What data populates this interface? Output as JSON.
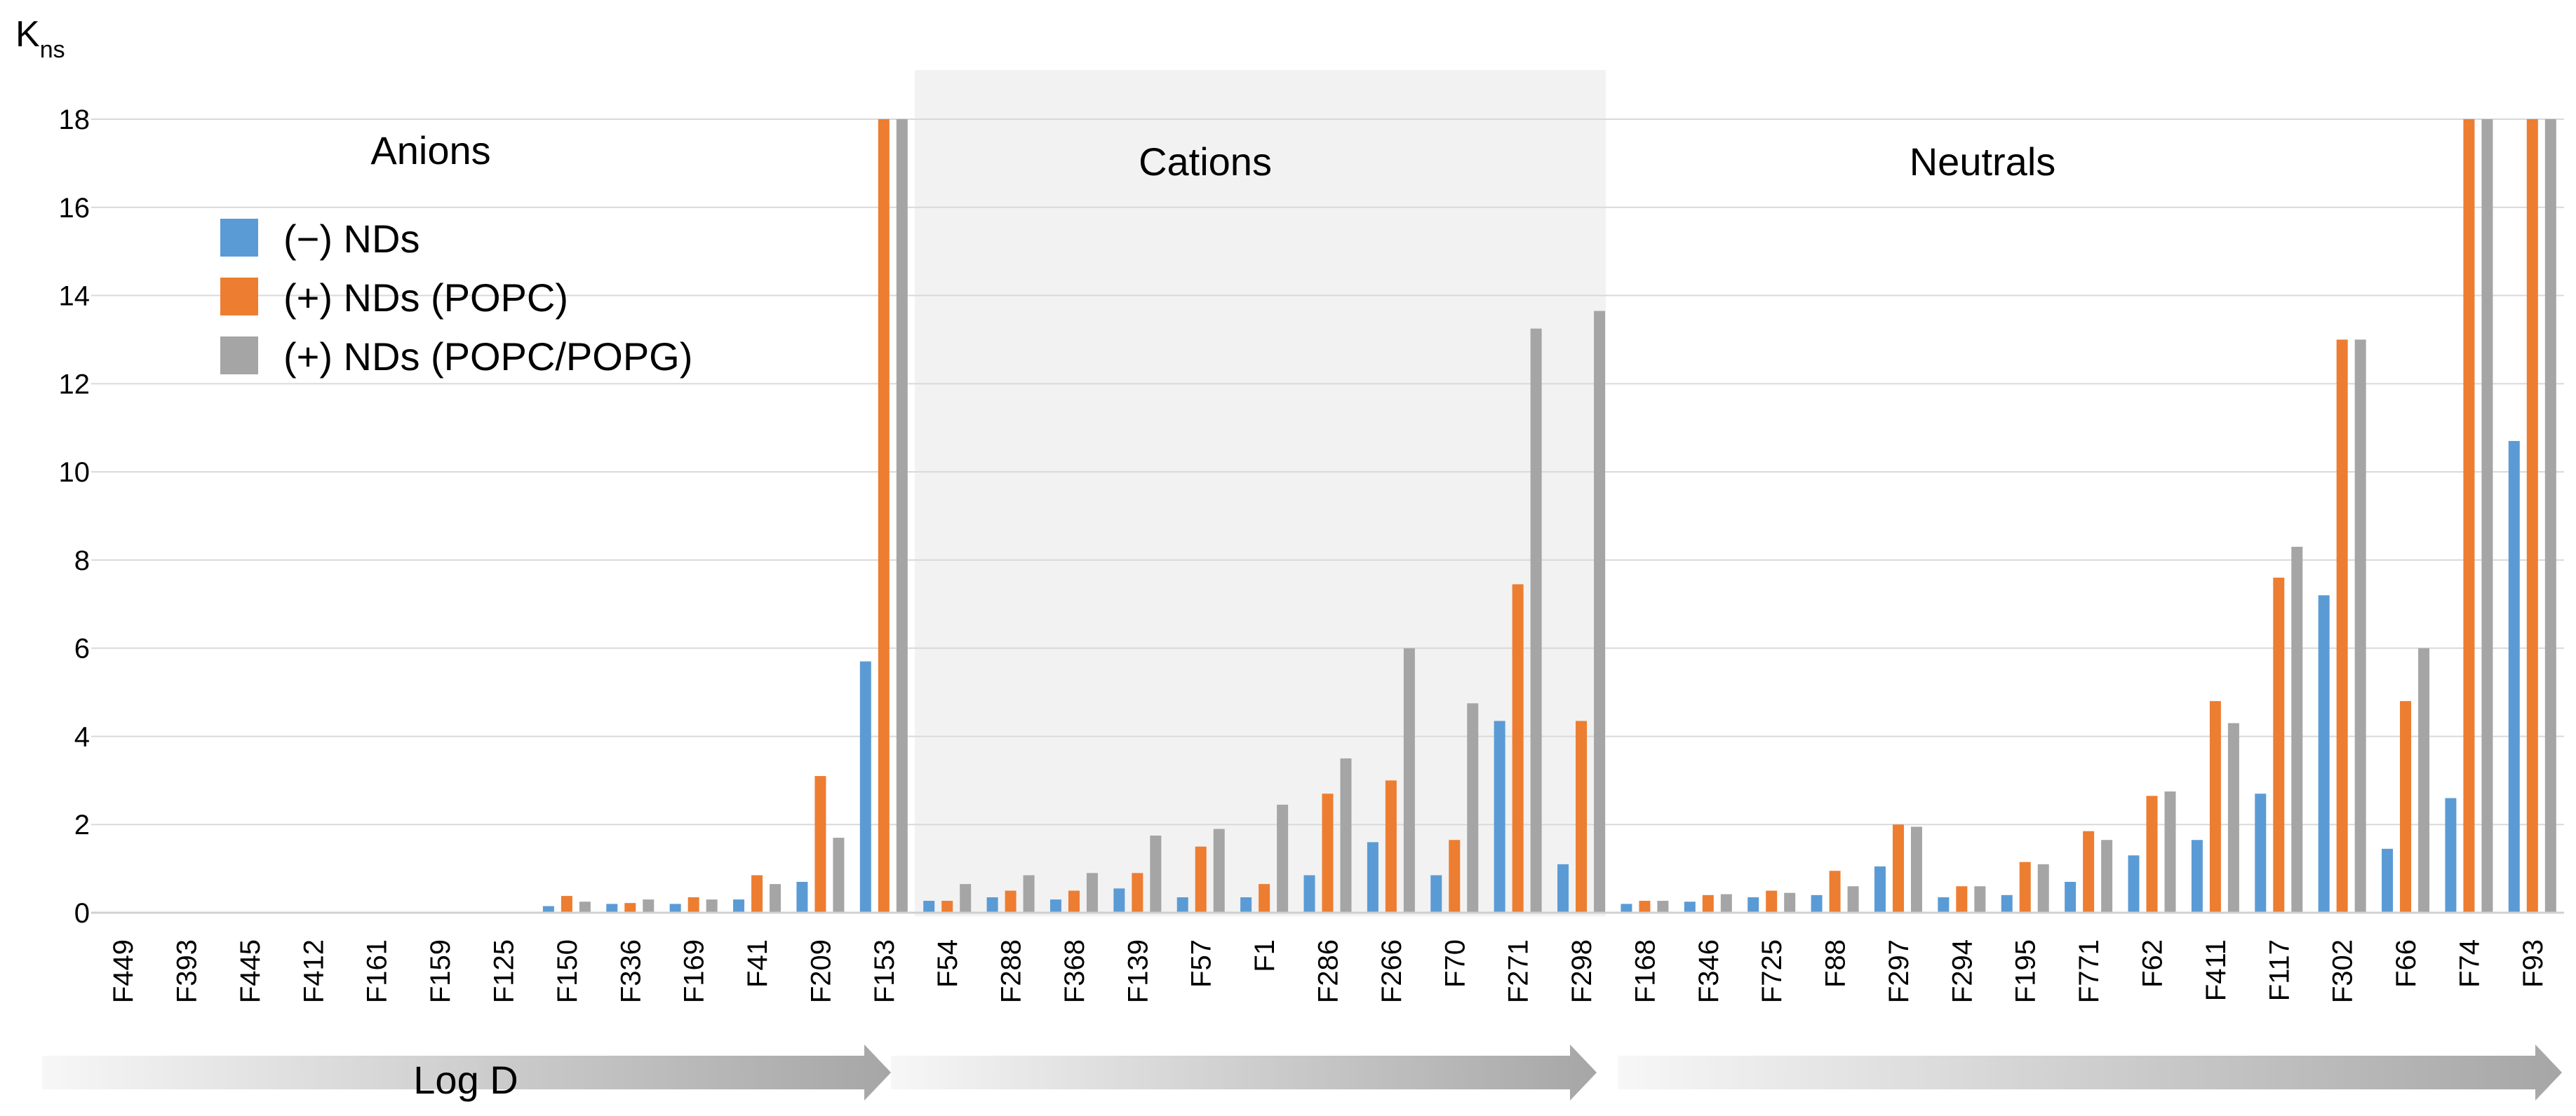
{
  "chart_data": {
    "type": "bar",
    "ylabel_main": "K",
    "ylabel_sub": "ns",
    "ylim": [
      0,
      18
    ],
    "yticks": [
      0,
      2,
      4,
      6,
      8,
      10,
      12,
      14,
      16,
      18
    ],
    "grid": true,
    "xlabel": "Log D",
    "groups": [
      {
        "label": "Anions",
        "shaded": false,
        "categories": [
          "F449",
          "F393",
          "F445",
          "F412",
          "F161",
          "F159",
          "F125",
          "F150",
          "F336",
          "F169",
          "F41",
          "F209",
          "F153"
        ]
      },
      {
        "label": "Cations",
        "shaded": true,
        "categories": [
          "F54",
          "F288",
          "F368",
          "F139",
          "F57",
          "F1",
          "F286",
          "F266",
          "F70",
          "F271",
          "F298"
        ]
      },
      {
        "label": "Neutrals",
        "shaded": false,
        "categories": [
          "F168",
          "F346",
          "F725",
          "F88",
          "F297",
          "F294",
          "F195",
          "F771",
          "F62",
          "F411",
          "F117",
          "F302",
          "F66",
          "F74",
          "F93"
        ]
      }
    ],
    "categories": [
      "F449",
      "F393",
      "F445",
      "F412",
      "F161",
      "F159",
      "F125",
      "F150",
      "F336",
      "F169",
      "F41",
      "F209",
      "F153",
      "F54",
      "F288",
      "F368",
      "F139",
      "F57",
      "F1",
      "F286",
      "F266",
      "F70",
      "F271",
      "F298",
      "F168",
      "F346",
      "F725",
      "F88",
      "F297",
      "F294",
      "F195",
      "F771",
      "F62",
      "F411",
      "F117",
      "F302",
      "F66",
      "F74",
      "F93"
    ],
    "series": [
      {
        "name": "(−) NDs",
        "color": "#5B9BD5",
        "values": [
          0,
          0,
          0,
          0,
          0,
          0,
          0,
          0.15,
          0.2,
          0.2,
          0.3,
          0.7,
          5.7,
          0.27,
          0.35,
          0.3,
          0.55,
          0.35,
          0.35,
          0.85,
          1.6,
          0.85,
          4.35,
          1.1,
          0.2,
          0.25,
          0.35,
          0.4,
          1.05,
          0.35,
          0.4,
          0.7,
          1.3,
          1.65,
          2.7,
          7.2,
          1.45,
          2.6,
          10.7
        ]
      },
      {
        "name": "(+) NDs (POPC)",
        "color": "#ED7D31",
        "values": [
          0,
          0,
          0,
          0,
          0,
          0,
          0,
          0.38,
          0.22,
          0.35,
          0.85,
          3.1,
          18,
          0.27,
          0.5,
          0.5,
          0.9,
          1.5,
          0.65,
          2.7,
          3.0,
          1.65,
          7.45,
          4.35,
          0.27,
          0.4,
          0.5,
          0.95,
          2.0,
          0.6,
          1.15,
          1.85,
          2.65,
          4.8,
          7.6,
          13.0,
          4.8,
          18,
          18
        ]
      },
      {
        "name": "(+) NDs (POPC/POPG)",
        "color": "#A5A5A5",
        "values": [
          0,
          0,
          0,
          0,
          0,
          0,
          0,
          0.25,
          0.3,
          0.3,
          0.65,
          1.7,
          18,
          0.65,
          0.85,
          0.9,
          1.75,
          1.9,
          2.45,
          3.5,
          6.0,
          4.75,
          13.25,
          13.65,
          0.27,
          0.42,
          0.45,
          0.6,
          1.95,
          0.6,
          1.1,
          1.65,
          2.75,
          4.3,
          8.3,
          13.0,
          6.0,
          18,
          18
        ]
      }
    ]
  }
}
